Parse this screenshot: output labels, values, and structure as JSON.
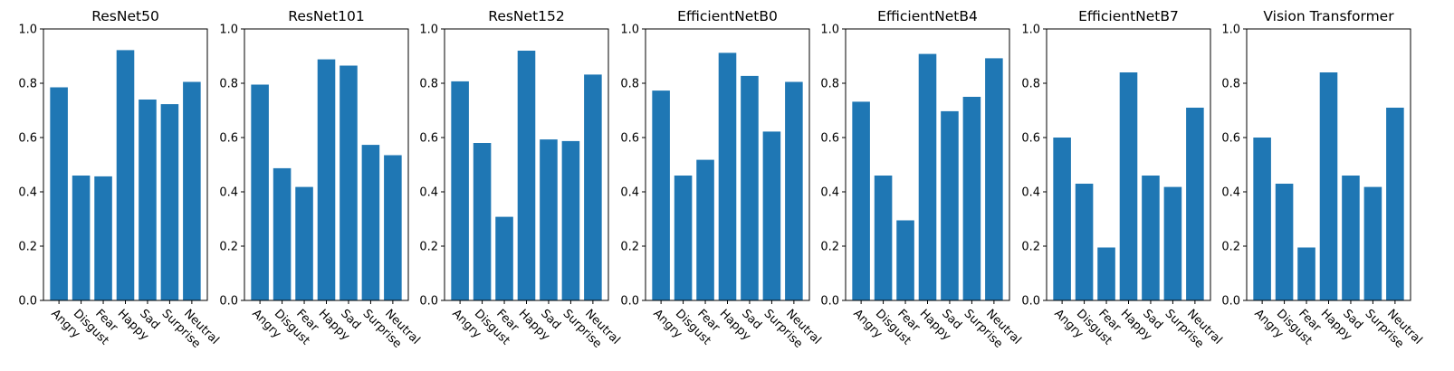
{
  "chart_data": [
    {
      "type": "bar",
      "title": "ResNet50",
      "categories": [
        "Angry",
        "Disgust",
        "Fear",
        "Happy",
        "Sad",
        "Surprise",
        "Neutral"
      ],
      "values": [
        0.785,
        0.46,
        0.457,
        0.922,
        0.74,
        0.723,
        0.805
      ],
      "ylim": [
        0,
        1.0
      ],
      "yticks": [
        "0.0",
        "0.2",
        "0.4",
        "0.6",
        "0.8",
        "1.0"
      ],
      "grid": false,
      "color": "#1f77b4"
    },
    {
      "type": "bar",
      "title": "ResNet101",
      "categories": [
        "Angry",
        "Disgust",
        "Fear",
        "Happy",
        "Sad",
        "Surprise",
        "Neutral"
      ],
      "values": [
        0.795,
        0.487,
        0.418,
        0.888,
        0.865,
        0.573,
        0.535
      ],
      "ylim": [
        0,
        1.0
      ],
      "yticks": [
        "0.0",
        "0.2",
        "0.4",
        "0.6",
        "0.8",
        "1.0"
      ],
      "grid": false,
      "color": "#1f77b4"
    },
    {
      "type": "bar",
      "title": "ResNet152",
      "categories": [
        "Angry",
        "Disgust",
        "Fear",
        "Happy",
        "Sad",
        "Surprise",
        "Neutral"
      ],
      "values": [
        0.807,
        0.58,
        0.308,
        0.92,
        0.593,
        0.587,
        0.832
      ],
      "ylim": [
        0,
        1.0
      ],
      "yticks": [
        "0.0",
        "0.2",
        "0.4",
        "0.6",
        "0.8",
        "1.0"
      ],
      "grid": false,
      "color": "#1f77b4"
    },
    {
      "type": "bar",
      "title": "EfficientNetB0",
      "categories": [
        "Angry",
        "Disgust",
        "Fear",
        "Happy",
        "Sad",
        "Surprise",
        "Neutral"
      ],
      "values": [
        0.773,
        0.46,
        0.518,
        0.912,
        0.827,
        0.622,
        0.805
      ],
      "ylim": [
        0,
        1.0
      ],
      "yticks": [
        "0.0",
        "0.2",
        "0.4",
        "0.6",
        "0.8",
        "1.0"
      ],
      "grid": false,
      "color": "#1f77b4"
    },
    {
      "type": "bar",
      "title": "EfficientNetB4",
      "categories": [
        "Angry",
        "Disgust",
        "Fear",
        "Happy",
        "Sad",
        "Surprise",
        "Neutral"
      ],
      "values": [
        0.732,
        0.46,
        0.295,
        0.908,
        0.697,
        0.75,
        0.892
      ],
      "ylim": [
        0,
        1.0
      ],
      "yticks": [
        "0.0",
        "0.2",
        "0.4",
        "0.6",
        "0.8",
        "1.0"
      ],
      "grid": false,
      "color": "#1f77b4"
    },
    {
      "type": "bar",
      "title": "EfficientNetB7",
      "categories": [
        "Angry",
        "Disgust",
        "Fear",
        "Happy",
        "Sad",
        "Surprise",
        "Neutral"
      ],
      "values": [
        0.6,
        0.43,
        0.195,
        0.84,
        0.46,
        0.418,
        0.71
      ],
      "ylim": [
        0,
        1.0
      ],
      "yticks": [
        "0.0",
        "0.2",
        "0.4",
        "0.6",
        "0.8",
        "1.0"
      ],
      "grid": false,
      "color": "#1f77b4"
    },
    {
      "type": "bar",
      "title": "Vision Transformer",
      "categories": [
        "Angry",
        "Disgust",
        "Fear",
        "Happy",
        "Sad",
        "Surprise",
        "Neutral"
      ],
      "values": [
        0.6,
        0.43,
        0.195,
        0.84,
        0.46,
        0.418,
        0.71
      ],
      "ylim": [
        0,
        1.0
      ],
      "yticks": [
        "0.0",
        "0.2",
        "0.4",
        "0.6",
        "0.8",
        "1.0"
      ],
      "grid": false,
      "color": "#1f77b4"
    }
  ]
}
